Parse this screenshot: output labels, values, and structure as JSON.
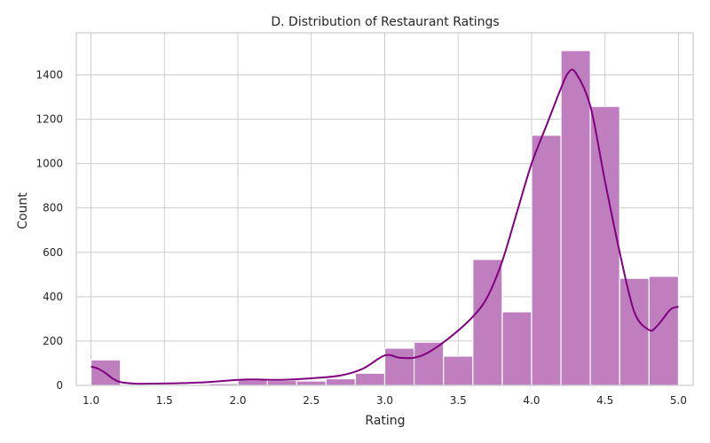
{
  "chart_data": {
    "type": "bar",
    "title": "D. Distribution of Restaurant Ratings",
    "xlabel": "Rating",
    "ylabel": "Count",
    "xlim": [
      0.9,
      5.1
    ],
    "ylim": [
      0,
      1590
    ],
    "xticks": [
      "1.0",
      "1.5",
      "2.0",
      "2.5",
      "3.0",
      "3.5",
      "4.0",
      "4.5",
      "5.0"
    ],
    "yticks": [
      "0",
      "200",
      "400",
      "600",
      "800",
      "1000",
      "1200",
      "1400"
    ],
    "grid": true,
    "bin_edges": [
      1.0,
      1.2,
      1.4,
      1.6,
      1.8,
      2.0,
      2.2,
      2.4,
      2.6,
      2.8,
      3.0,
      3.2,
      3.4,
      3.6,
      3.8,
      4.0,
      4.2,
      4.4,
      4.6,
      4.8,
      5.0
    ],
    "values": [
      115,
      2,
      3,
      5,
      8,
      25,
      22,
      20,
      30,
      55,
      168,
      195,
      132,
      568,
      332,
      1128,
      1510,
      1258,
      483,
      492
    ],
    "kde": {
      "x": [
        1.0,
        1.05,
        1.1,
        1.15,
        1.2,
        1.3,
        1.4,
        1.6,
        1.8,
        2.0,
        2.1,
        2.3,
        2.5,
        2.7,
        2.85,
        3.0,
        3.1,
        3.2,
        3.3,
        3.45,
        3.6,
        3.7,
        3.8,
        3.9,
        4.0,
        4.1,
        4.2,
        4.25,
        4.3,
        4.4,
        4.5,
        4.6,
        4.7,
        4.8,
        4.85,
        4.9,
        4.95,
        5.0
      ],
      "y": [
        85,
        75,
        55,
        30,
        15,
        8,
        8,
        10,
        15,
        25,
        27,
        25,
        32,
        45,
        75,
        135,
        125,
        125,
        150,
        220,
        310,
        400,
        560,
        780,
        1000,
        1170,
        1340,
        1410,
        1410,
        1260,
        920,
        600,
        330,
        250,
        265,
        305,
        345,
        355
      ]
    },
    "colors": {
      "bar_fill": "#bf7fbf",
      "bar_edge": "#ffffff",
      "kde_line": "#800080",
      "grid": "#cccccc",
      "spine": "#cccccc",
      "text": "#262626"
    }
  }
}
